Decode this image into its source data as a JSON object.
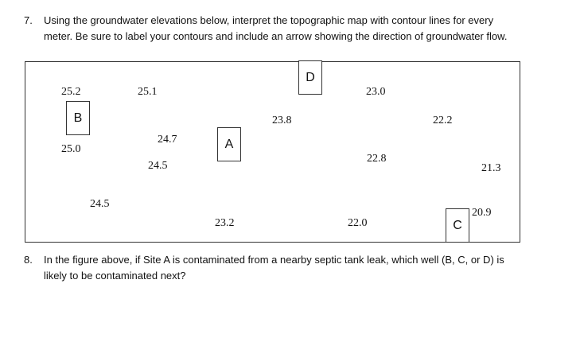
{
  "question7": {
    "number": "7.",
    "lines": [
      "Using the groundwater elevations below, interpret the topographic map with contour lines for every",
      "meter. Be sure to label your contours and include an arrow showing the direction of groundwater flow."
    ]
  },
  "map": {
    "elevations": [
      "25.2",
      "25.1",
      "23.0",
      "23.8",
      "22.2",
      "24.7",
      "25.0",
      "22.8",
      "24.5",
      "21.3",
      "24.5",
      "20.9",
      "23.2",
      "22.0"
    ],
    "wells": [
      "B",
      "A",
      "D",
      "C"
    ]
  },
  "question8": {
    "number": "8.",
    "lines": [
      "In the figure above, if Site A is contaminated from a nearby septic tank leak, which well (B, C, or D) is",
      "likely to be contaminated next?"
    ]
  }
}
